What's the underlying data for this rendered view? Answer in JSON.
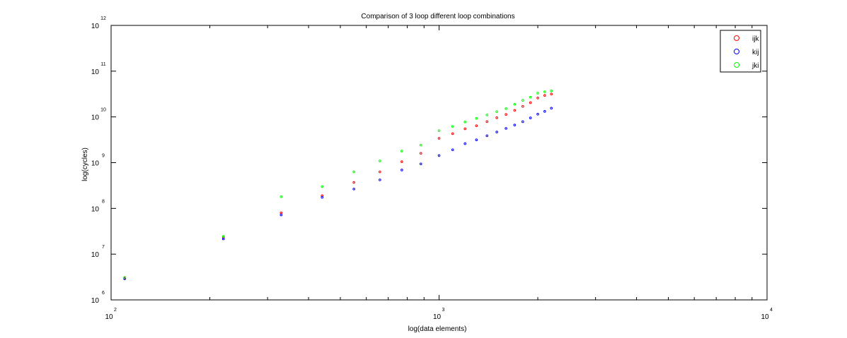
{
  "chart_data": {
    "type": "scatter",
    "title": "Comparison of 3 loop different loop combinations",
    "xlabel": "log(data elements)",
    "ylabel": "log(cycles)",
    "x_scale": "log",
    "y_scale": "log",
    "xlim": [
      100,
      10000
    ],
    "ylim": [
      1000000,
      1000000000000
    ],
    "x_ticks": [
      {
        "base": "10",
        "exp": "2"
      },
      {
        "base": "10",
        "exp": "3"
      },
      {
        "base": "10",
        "exp": "4"
      }
    ],
    "y_ticks": [
      {
        "base": "10",
        "exp": "6"
      },
      {
        "base": "10",
        "exp": "7"
      },
      {
        "base": "10",
        "exp": "8"
      },
      {
        "base": "10",
        "exp": "9"
      },
      {
        "base": "10",
        "exp": "10"
      },
      {
        "base": "10",
        "exp": "11"
      },
      {
        "base": "10",
        "exp": "12"
      }
    ],
    "grid": false,
    "legend_position": "top-right",
    "x": [
      110,
      220,
      330,
      440,
      550,
      660,
      770,
      880,
      1000,
      1100,
      1200,
      1300,
      1400,
      1500,
      1600,
      1700,
      1800,
      1900,
      2000,
      2100,
      2200
    ],
    "series": [
      {
        "name": "ijk",
        "color": "#ff0000",
        "values": [
          3000000,
          23000000,
          80000000,
          190000000,
          370000000,
          630000000,
          1050000000,
          1600000000,
          3400000000,
          4300000000,
          5500000000,
          6400000000,
          7900000000,
          9600000000,
          11300000000,
          13900000000,
          17000000000,
          20500000000,
          26000000000,
          29500000000,
          31500000000
        ]
      },
      {
        "name": "kij",
        "color": "#0000ff",
        "values": [
          2900000,
          21500000,
          72000000,
          175000000,
          265000000,
          420000000,
          690000000,
          940000000,
          1430000000,
          1910000000,
          2600000000,
          3150000000,
          3870000000,
          4670000000,
          5600000000,
          6650000000,
          7850000000,
          9500000000,
          11500000000,
          13200000000,
          15500000000
        ]
      },
      {
        "name": "jki",
        "color": "#00ff00",
        "values": [
          3100000,
          24500000,
          180000000,
          300000000,
          630000000,
          1090000000,
          1790000000,
          2420000000,
          5000000000,
          6200000000,
          7750000000,
          9300000000,
          11000000000,
          13000000000,
          15200000000,
          18900000000,
          23000000000,
          27000000000,
          33000000000,
          35500000000,
          37000000000
        ]
      }
    ]
  }
}
